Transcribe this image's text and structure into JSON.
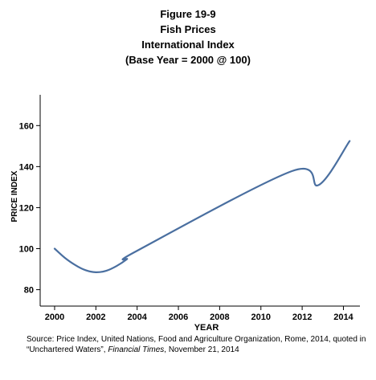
{
  "title": {
    "figure": "Figure 19-9",
    "subject": "Fish Prices",
    "index": "International Index",
    "base": "(Base Year = 2000 @ 100)"
  },
  "chart_data": {
    "type": "line",
    "title": "Fish Prices",
    "xlabel": "YEAR",
    "ylabel": "PRICE INDEX",
    "xlim": [
      1999.3,
      2014.8
    ],
    "ylim": [
      72,
      175
    ],
    "xticks": [
      2000,
      2002,
      2004,
      2006,
      2008,
      2010,
      2012,
      2014
    ],
    "yticks": [
      80,
      100,
      120,
      140,
      160
    ],
    "grid": false,
    "legend": "none",
    "series": [
      {
        "color": "#4a6fa0",
        "points": [
          [
            2000.0,
            100.0
          ],
          [
            2000.5,
            95.5
          ],
          [
            2001.0,
            92.0
          ],
          [
            2001.5,
            89.5
          ],
          [
            2002.0,
            88.5
          ],
          [
            2002.5,
            89.2
          ],
          [
            2003.0,
            91.5
          ],
          [
            2003.5,
            94.8
          ],
          [
            2004.0,
            99.0
          ],
          [
            2011.5,
            137.8
          ],
          [
            2012.8,
            131.0
          ],
          [
            2014.3,
            152.5
          ]
        ]
      }
    ]
  },
  "source": {
    "prefix": "Source: Price Index, United Nations, Food and Agriculture Organization, Rome, 2014,  quoted in “Unchartered Waters”, ",
    "publication": "Financial Times",
    "suffix": ", November 21, 2014"
  }
}
